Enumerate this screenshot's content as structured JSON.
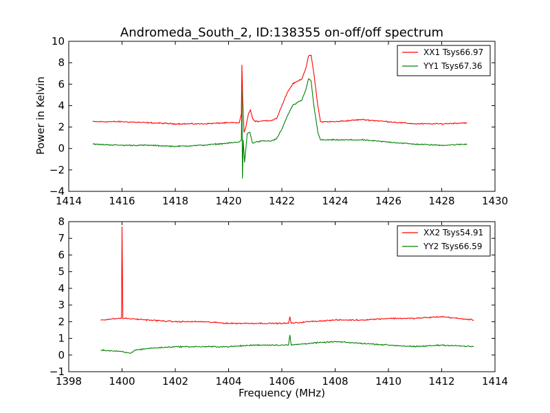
{
  "title": "Andromeda_South_2, ID:138355 on-off/off spectrum",
  "xlabel": "Frequency (MHz)",
  "ylabel": "Power in Kelvin",
  "colors": {
    "red": "#ff0000",
    "green": "#007f00"
  },
  "chart_data": [
    {
      "type": "line",
      "xlim": [
        1414,
        1430
      ],
      "ylim": [
        -4,
        10
      ],
      "xticks": [
        "1414",
        "1416",
        "1418",
        "1420",
        "1422",
        "1424",
        "1426",
        "1428",
        "1430"
      ],
      "yticks": [
        "−4",
        "−2",
        "0",
        "2",
        "4",
        "6",
        "8",
        "10"
      ],
      "legend_position": "top-right",
      "series": [
        {
          "name": "XX1 Tsys66.97",
          "color": "#ff0000",
          "x": [
            1414.9,
            1416,
            1417,
            1418,
            1419,
            1420,
            1420.4,
            1420.48,
            1420.5,
            1420.53,
            1420.58,
            1420.65,
            1420.75,
            1420.82,
            1420.9,
            1421.0,
            1421.3,
            1421.6,
            1421.8,
            1422.0,
            1422.2,
            1422.4,
            1422.6,
            1422.75,
            1422.9,
            1423.0,
            1423.1,
            1423.2,
            1423.35,
            1423.45,
            1423.6,
            1424,
            1425,
            1426,
            1427,
            1428,
            1428.95
          ],
          "y": [
            2.5,
            2.5,
            2.4,
            2.3,
            2.3,
            2.4,
            2.4,
            3.2,
            7.8,
            4.5,
            1.5,
            2.0,
            3.3,
            3.6,
            2.8,
            2.5,
            2.6,
            2.6,
            2.8,
            4.0,
            5.2,
            6.0,
            6.3,
            6.5,
            7.5,
            8.6,
            8.7,
            7.0,
            4.0,
            2.5,
            2.5,
            2.5,
            2.7,
            2.5,
            2.3,
            2.3,
            2.4
          ]
        },
        {
          "name": "YY1 Tsys67.36",
          "color": "#007f00",
          "x": [
            1414.9,
            1416,
            1417,
            1418,
            1419,
            1420,
            1420.4,
            1420.48,
            1420.5,
            1420.52,
            1420.55,
            1420.6,
            1420.7,
            1420.8,
            1420.9,
            1421.0,
            1421.3,
            1421.6,
            1421.8,
            1422.0,
            1422.2,
            1422.4,
            1422.6,
            1422.75,
            1422.9,
            1423.0,
            1423.1,
            1423.2,
            1423.35,
            1423.45,
            1423.6,
            1424,
            1425,
            1426,
            1427,
            1428,
            1428.95
          ],
          "y": [
            0.4,
            0.3,
            0.3,
            0.2,
            0.3,
            0.5,
            0.6,
            0.8,
            5.5,
            -2.8,
            0.8,
            -1.3,
            1.4,
            1.5,
            0.5,
            0.6,
            0.7,
            0.7,
            0.9,
            1.8,
            3.0,
            4.0,
            4.3,
            4.5,
            5.5,
            6.5,
            6.3,
            4.0,
            1.5,
            0.8,
            0.8,
            0.8,
            0.8,
            0.6,
            0.4,
            0.3,
            0.4
          ]
        }
      ]
    },
    {
      "type": "line",
      "xlim": [
        1398,
        1414
      ],
      "ylim": [
        -1,
        8
      ],
      "xticks": [
        "1398",
        "1400",
        "1402",
        "1404",
        "1406",
        "1408",
        "1410",
        "1412",
        "1414"
      ],
      "yticks": [
        "−1",
        "0",
        "1",
        "2",
        "3",
        "4",
        "5",
        "6",
        "7",
        "8"
      ],
      "xlabel": "Frequency (MHz)",
      "legend_position": "top-right",
      "series": [
        {
          "name": "XX2 Tsys54.91",
          "color": "#ff0000",
          "x": [
            1399.2,
            1399.9,
            1399.98,
            1400.0,
            1400.03,
            1400.1,
            1401,
            1402,
            1403,
            1404,
            1405,
            1406,
            1406.25,
            1406.3,
            1406.35,
            1407,
            1408,
            1409,
            1410,
            1411,
            1412,
            1413.2
          ],
          "y": [
            2.1,
            2.2,
            2.2,
            7.7,
            2.2,
            2.2,
            2.1,
            2.0,
            2.0,
            1.9,
            1.9,
            1.9,
            1.9,
            2.3,
            1.9,
            2.0,
            2.1,
            2.1,
            2.2,
            2.2,
            2.3,
            2.1
          ]
        },
        {
          "name": "YY2 Tsys66.59",
          "color": "#007f00",
          "x": [
            1399.2,
            1400,
            1400.3,
            1400.5,
            1401,
            1402,
            1403,
            1404,
            1405,
            1406,
            1406.25,
            1406.3,
            1406.35,
            1407,
            1408,
            1409,
            1410,
            1411,
            1412,
            1413.2
          ],
          "y": [
            0.3,
            0.2,
            0.1,
            0.3,
            0.4,
            0.5,
            0.5,
            0.5,
            0.6,
            0.6,
            0.6,
            1.2,
            0.6,
            0.7,
            0.8,
            0.7,
            0.6,
            0.5,
            0.6,
            0.5
          ]
        }
      ]
    }
  ]
}
